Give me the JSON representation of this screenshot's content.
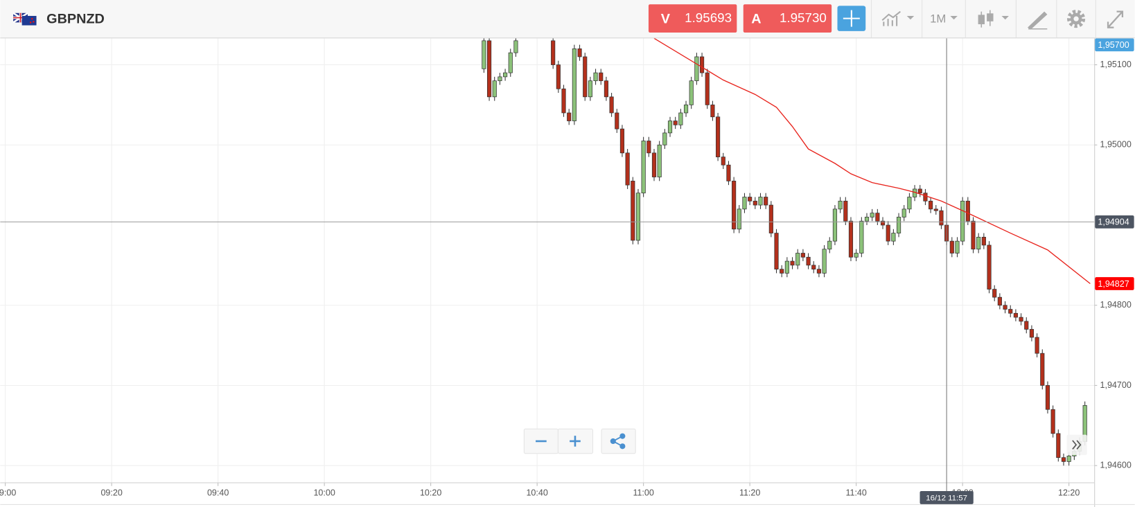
{
  "toolbar": {
    "symbol": "GBPNZD",
    "sell": {
      "label": "V",
      "price": "1.95693"
    },
    "buy": {
      "label": "A",
      "price": "1.95730"
    },
    "timeframe": "1M"
  },
  "chart_data": {
    "type": "candlestick",
    "up_color": "#8cc27a",
    "down_color": "#b3301c",
    "grid": true,
    "xlim": [
      539.05,
      744.76
    ],
    "ylim": [
      1.94579,
      1.95133
    ],
    "xticks": [
      {
        "value": 540,
        "label": "09:00"
      },
      {
        "value": 560,
        "label": "09:20"
      },
      {
        "value": 580,
        "label": "09:40"
      },
      {
        "value": 600,
        "label": "10:00"
      },
      {
        "value": 620,
        "label": "10:20"
      },
      {
        "value": 640,
        "label": "10:40"
      },
      {
        "value": 660,
        "label": "11:00"
      },
      {
        "value": 680,
        "label": "11:20"
      },
      {
        "value": 700,
        "label": "11:40"
      },
      {
        "value": 720,
        "label": "12:00"
      },
      {
        "value": 740,
        "label": "12:20"
      }
    ],
    "yticks": [
      {
        "value": 1.946,
        "label": "1,94600"
      },
      {
        "value": 1.947,
        "label": "1,94700"
      },
      {
        "value": 1.948,
        "label": "1,94800"
      },
      {
        "value": 1.95,
        "label": "1,95000"
      },
      {
        "value": 1.951,
        "label": "1,95100"
      }
    ],
    "x": [
      630,
      631,
      632,
      633,
      634,
      635,
      636,
      643,
      644,
      645,
      646,
      647,
      648,
      649,
      650,
      651,
      652,
      653,
      654,
      655,
      656,
      657,
      658,
      659,
      660,
      661,
      662,
      663,
      664,
      665,
      666,
      667,
      668,
      669,
      670,
      671,
      672,
      673,
      674,
      675,
      676,
      677,
      678,
      679,
      680,
      681,
      682,
      683,
      684,
      685,
      686,
      687,
      688,
      689,
      690,
      691,
      692,
      693,
      694,
      695,
      696,
      697,
      698,
      699,
      700,
      701,
      702,
      703,
      704,
      705,
      706,
      707,
      708,
      709,
      710,
      711,
      712,
      713,
      714,
      715,
      716,
      717,
      718,
      719,
      720,
      721,
      722,
      723,
      724,
      725,
      726,
      727,
      728,
      729,
      730,
      731,
      732,
      733,
      734,
      735,
      736,
      737,
      738,
      739,
      740,
      741,
      742,
      743
    ],
    "open": [
      1.95095,
      1.9513,
      1.9506,
      1.9508,
      1.95085,
      1.9509,
      1.95115,
      1.9513,
      1.951,
      1.9507,
      1.9504,
      1.9503,
      1.9512,
      1.9511,
      1.9506,
      1.9508,
      1.9509,
      1.9508,
      1.9506,
      1.9504,
      1.9502,
      1.9499,
      1.94955,
      1.94881,
      1.9494,
      1.95005,
      1.9499,
      1.9496,
      1.95,
      1.95015,
      1.9503,
      1.95025,
      1.9504,
      1.9505,
      1.9508,
      1.9511,
      1.9509,
      1.9505,
      1.95035,
      1.94985,
      1.94975,
      1.94955,
      1.94895,
      1.9492,
      1.94935,
      1.9493,
      1.94925,
      1.94935,
      1.94925,
      1.9489,
      1.94845,
      1.9484,
      1.94855,
      1.9485,
      1.94865,
      1.9486,
      1.9485,
      1.94845,
      1.9484,
      1.9487,
      1.9488,
      1.9492,
      1.9493,
      1.94905,
      1.9486,
      1.94865,
      1.94905,
      1.9491,
      1.94915,
      1.94905,
      1.949,
      1.9488,
      1.9489,
      1.9491,
      1.9492,
      1.94935,
      1.94945,
      1.9494,
      1.9493,
      1.9492,
      1.94918,
      1.949,
      1.9488,
      1.94865,
      1.9488,
      1.9493,
      1.94905,
      1.9487,
      1.94885,
      1.94875,
      1.9482,
      1.9481,
      1.948,
      1.94795,
      1.9479,
      1.94785,
      1.9478,
      1.9477,
      1.9476,
      1.9474,
      1.947,
      1.9467,
      1.9464,
      1.9461,
      1.94605,
      1.94612,
      1.94618,
      1.9463
    ],
    "high": [
      1.95135,
      1.95135,
      1.95085,
      1.9509,
      1.95095,
      1.9512,
      1.95135,
      1.95135,
      1.95105,
      1.95075,
      1.95045,
      1.95125,
      1.95125,
      1.95115,
      1.95085,
      1.95095,
      1.95095,
      1.95085,
      1.95065,
      1.95045,
      1.95025,
      1.94995,
      1.9496,
      1.94945,
      1.9501,
      1.9501,
      1.94995,
      1.95005,
      1.9502,
      1.95035,
      1.95035,
      1.95045,
      1.95055,
      1.95085,
      1.95115,
      1.95115,
      1.95095,
      1.95055,
      1.9504,
      1.9499,
      1.9498,
      1.9496,
      1.94925,
      1.9494,
      1.9494,
      1.94935,
      1.9494,
      1.9494,
      1.9493,
      1.94895,
      1.9485,
      1.9486,
      1.9486,
      1.9487,
      1.9487,
      1.94865,
      1.94855,
      1.9485,
      1.94875,
      1.94885,
      1.94925,
      1.94935,
      1.94935,
      1.9491,
      1.9487,
      1.9491,
      1.94915,
      1.9492,
      1.9492,
      1.9491,
      1.94905,
      1.94895,
      1.94915,
      1.94925,
      1.9494,
      1.9495,
      1.9495,
      1.94945,
      1.94935,
      1.94925,
      1.94923,
      1.94905,
      1.94885,
      1.94885,
      1.94935,
      1.94935,
      1.9491,
      1.9489,
      1.9489,
      1.9488,
      1.94825,
      1.94815,
      1.94805,
      1.948,
      1.94795,
      1.9479,
      1.94785,
      1.94775,
      1.94765,
      1.94745,
      1.94705,
      1.94675,
      1.94645,
      1.94615,
      1.94617,
      1.94623,
      1.94635,
      1.9468
    ],
    "low": [
      1.9509,
      1.95055,
      1.95055,
      1.95075,
      1.9508,
      1.95085,
      1.9511,
      1.95095,
      1.95065,
      1.95035,
      1.95025,
      1.95025,
      1.95105,
      1.95055,
      1.95055,
      1.95075,
      1.95075,
      1.95055,
      1.95035,
      1.95015,
      1.94985,
      1.94945,
      1.94876,
      1.94876,
      1.94935,
      1.94985,
      1.94955,
      1.94955,
      1.94995,
      1.9501,
      1.9502,
      1.9502,
      1.95035,
      1.95045,
      1.95075,
      1.95085,
      1.95045,
      1.9503,
      1.9498,
      1.9497,
      1.9495,
      1.9489,
      1.9489,
      1.94915,
      1.94925,
      1.9492,
      1.9492,
      1.9492,
      1.94885,
      1.9484,
      1.94835,
      1.94835,
      1.94845,
      1.94845,
      1.94855,
      1.94845,
      1.9484,
      1.94835,
      1.94835,
      1.94865,
      1.94875,
      1.94915,
      1.949,
      1.94855,
      1.94855,
      1.9486,
      1.949,
      1.94905,
      1.949,
      1.94895,
      1.94875,
      1.94875,
      1.94885,
      1.94905,
      1.94915,
      1.9493,
      1.94935,
      1.94925,
      1.94915,
      1.94913,
      1.94895,
      1.94875,
      1.9486,
      1.9486,
      1.94875,
      1.949,
      1.94865,
      1.94865,
      1.9487,
      1.94815,
      1.94805,
      1.94795,
      1.9479,
      1.94785,
      1.9478,
      1.94775,
      1.94765,
      1.94755,
      1.94735,
      1.94695,
      1.94665,
      1.94635,
      1.94605,
      1.946,
      1.946,
      1.94607,
      1.94613,
      1.94625
    ],
    "close": [
      1.9513,
      1.9506,
      1.9508,
      1.95085,
      1.9509,
      1.95115,
      1.9513,
      1.951,
      1.9507,
      1.9504,
      1.9503,
      1.9512,
      1.9511,
      1.9506,
      1.9508,
      1.9509,
      1.9508,
      1.9506,
      1.9504,
      1.9502,
      1.9499,
      1.9495,
      1.94881,
      1.9494,
      1.95005,
      1.9499,
      1.9496,
      1.95,
      1.95015,
      1.9503,
      1.95025,
      1.9504,
      1.9505,
      1.9508,
      1.9511,
      1.9509,
      1.9505,
      1.95035,
      1.94985,
      1.94975,
      1.94955,
      1.94895,
      1.9492,
      1.94935,
      1.9493,
      1.94925,
      1.94935,
      1.94925,
      1.9489,
      1.94845,
      1.9484,
      1.94855,
      1.9485,
      1.94865,
      1.9486,
      1.9485,
      1.94845,
      1.9484,
      1.9487,
      1.9488,
      1.9492,
      1.9493,
      1.94905,
      1.9486,
      1.94865,
      1.94905,
      1.9491,
      1.94915,
      1.94905,
      1.949,
      1.9488,
      1.9489,
      1.9491,
      1.9492,
      1.94935,
      1.94945,
      1.9494,
      1.9493,
      1.9492,
      1.94918,
      1.949,
      1.9488,
      1.94865,
      1.9488,
      1.9493,
      1.94905,
      1.9487,
      1.94885,
      1.94875,
      1.9482,
      1.9481,
      1.948,
      1.94795,
      1.9479,
      1.94785,
      1.9478,
      1.9477,
      1.9476,
      1.9474,
      1.947,
      1.9467,
      1.9464,
      1.9461,
      1.94605,
      1.94612,
      1.94618,
      1.9463,
      1.94675
    ],
    "lines": [
      {
        "color": "#e8231c",
        "x": [
          662,
          672,
          675,
          681,
          685,
          688,
          691,
          696,
          699,
          703,
          708,
          711,
          716,
          721,
          729,
          736,
          744
        ],
        "values": [
          1.95133,
          1.95093,
          1.95081,
          1.95063,
          1.95047,
          1.95023,
          1.94995,
          1.94977,
          1.94964,
          1.94953,
          1.94946,
          1.94941,
          1.9493,
          1.94915,
          1.9489,
          1.94869,
          1.94827
        ]
      }
    ],
    "price_labels": [
      {
        "value": 1.957,
        "label": "1,95700",
        "color": "#4aa3df"
      },
      {
        "value": 1.94827,
        "label": "1,94827",
        "color": "#ff0000"
      }
    ],
    "crosshair": {
      "x": {
        "value": 717,
        "label": "16/12 11:57"
      },
      "y": {
        "value": 1.94904,
        "label": "1,94904"
      }
    }
  }
}
